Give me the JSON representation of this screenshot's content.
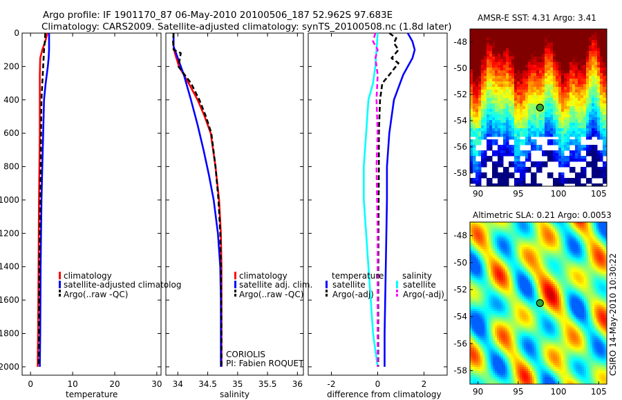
{
  "title": {
    "line1": "Argo profile: IF 1901170_87 06-May-2010 20100506_187 52.962S 97.683E",
    "line2": "Climatology: CARS2009. Satellite-adjusted climatology: synTS_20100508.nc (1.8d later)"
  },
  "side_label": "CSIRO 14-May-2010 10:30:22",
  "colors": {
    "red": "#ff0000",
    "blue": "#0000ff",
    "black": "#000000",
    "cyan": "#00ffff",
    "magenta": "#ff00ff"
  },
  "chart_data": [
    {
      "type": "line",
      "name": "temperature-panel",
      "xlabel": "temperature",
      "ylabel": "",
      "xlim": [
        -2,
        31
      ],
      "ylim": [
        2050,
        0
      ],
      "xticks": [
        "0",
        "10",
        "20",
        "30"
      ],
      "yticks": [
        "0",
        "200",
        "400",
        "600",
        "800",
        "1000",
        "1200",
        "1400",
        "1600",
        "1800",
        "2000"
      ],
      "legend": [
        "climatology",
        "satellite-adjusted climatolog",
        "Argo(..raw -QC)"
      ],
      "series": [
        {
          "name": "climatology",
          "color": "red",
          "style": "solid",
          "x": [
            4.0,
            3.5,
            2.8,
            2.3,
            2.2,
            2.2,
            2.2,
            2.1,
            2.0,
            1.9,
            1.8,
            1.7
          ],
          "y": [
            0,
            50,
            100,
            150,
            250,
            400,
            600,
            800,
            1000,
            1400,
            1800,
            2000
          ]
        },
        {
          "name": "satellite-adjusted climatology",
          "color": "blue",
          "style": "solid",
          "x": [
            4.4,
            4.4,
            4.3,
            4.1,
            3.6,
            3.2,
            3.0,
            2.8,
            2.6,
            2.4,
            2.3,
            2.2
          ],
          "y": [
            0,
            100,
            150,
            200,
            300,
            400,
            600,
            800,
            1000,
            1400,
            1800,
            2000
          ]
        },
        {
          "name": "Argo(..raw -QC)",
          "color": "black",
          "style": "dashed",
          "x": [
            3.5,
            3.4,
            3.2,
            3.1,
            2.9,
            2.6,
            2.5,
            2.4,
            2.3,
            2.1,
            2.0,
            1.9
          ],
          "y": [
            0,
            50,
            100,
            150,
            250,
            400,
            600,
            800,
            1000,
            1400,
            1800,
            2000
          ]
        }
      ]
    },
    {
      "type": "line",
      "name": "salinity-panel",
      "xlabel": "salinity",
      "xlim": [
        33.8,
        36.1
      ],
      "ylim": [
        2050,
        0
      ],
      "xticks": [
        "34",
        "34.5",
        "35",
        "35.5",
        "36"
      ],
      "legend": [
        "climatology",
        "satellite adj. clim.",
        "Argo(..raw -QC)"
      ],
      "annotation": [
        "CORIOLIS",
        "PI: Fabien ROQUET"
      ],
      "series": [
        {
          "name": "climatology",
          "color": "red",
          "style": "solid",
          "x": [
            33.93,
            33.93,
            33.95,
            34.02,
            34.18,
            34.33,
            34.45,
            34.55,
            34.63,
            34.69,
            34.72,
            34.73,
            34.73,
            34.73
          ],
          "y": [
            0,
            80,
            120,
            200,
            300,
            400,
            500,
            600,
            800,
            1000,
            1200,
            1400,
            1800,
            2000
          ]
        },
        {
          "name": "satellite adj. clim.",
          "color": "blue",
          "style": "solid",
          "x": [
            33.93,
            33.93,
            33.98,
            34.1,
            34.22,
            34.33,
            34.43,
            34.52,
            34.6,
            34.67,
            34.71,
            34.72,
            34.72,
            34.72
          ],
          "y": [
            0,
            80,
            130,
            250,
            400,
            550,
            700,
            850,
            1000,
            1200,
            1400,
            1600,
            1800,
            2000
          ]
        },
        {
          "name": "Argo(..raw -QC)",
          "color": "black",
          "style": "dashed",
          "x": [
            33.93,
            33.92,
            33.93,
            34.05,
            34.01,
            34.22,
            34.36,
            34.47,
            34.56,
            34.63,
            34.68,
            34.71,
            34.72,
            34.73,
            34.73
          ],
          "y": [
            0,
            50,
            100,
            120,
            200,
            300,
            400,
            500,
            600,
            800,
            1000,
            1200,
            1400,
            1800,
            2000
          ]
        }
      ]
    },
    {
      "type": "line",
      "name": "difference-panel",
      "xlabel": "difference from climatology",
      "xlim": [
        -3.0,
        3.0
      ],
      "ylim": [
        2050,
        0
      ],
      "xticks": [
        "-2",
        "0",
        "2"
      ],
      "legend_groups": [
        {
          "title": "temperature",
          "entries": [
            "satellite",
            "Argo(-adj)"
          ]
        },
        {
          "title": "salinity",
          "entries": [
            "satellite",
            "Argo(-adj)"
          ]
        }
      ],
      "series": [
        {
          "name": "temperature satellite",
          "color": "blue",
          "style": "solid",
          "x": [
            1.3,
            1.5,
            1.6,
            1.5,
            1.1,
            0.7,
            0.5,
            0.4,
            0.4,
            0.35,
            0.3,
            0.3
          ],
          "y": [
            0,
            50,
            100,
            150,
            250,
            400,
            600,
            800,
            1000,
            1400,
            1800,
            2000
          ]
        },
        {
          "name": "temperature Argo(-adj)",
          "color": "black",
          "style": "dashed",
          "x": [
            0.5,
            0.8,
            0.7,
            0.9,
            0.6,
            0.9,
            0.5,
            0.2,
            0.1,
            0.05,
            0.05,
            0.03,
            0.02,
            0.02
          ],
          "y": [
            0,
            30,
            60,
            100,
            150,
            180,
            250,
            300,
            400,
            600,
            800,
            1200,
            1600,
            2000
          ]
        },
        {
          "name": "salinity satellite",
          "color": "cyan",
          "style": "solid",
          "x": [
            0.0,
            -0.05,
            -0.1,
            -0.2,
            -0.4,
            -0.5,
            -0.6,
            -0.6,
            -0.5,
            -0.4,
            -0.3,
            -0.2,
            -0.1,
            0.0
          ],
          "y": [
            0,
            100,
            200,
            300,
            400,
            600,
            800,
            1000,
            1200,
            1400,
            1600,
            1800,
            1900,
            2000
          ]
        },
        {
          "name": "salinity Argo(-adj)",
          "color": "magenta",
          "style": "dashed",
          "x": [
            -0.1,
            -0.2,
            0.0,
            -0.1,
            0.0,
            -0.05,
            0.0,
            -0.05,
            0.0,
            0.0
          ],
          "y": [
            0,
            50,
            100,
            150,
            250,
            400,
            600,
            800,
            1200,
            2000
          ]
        }
      ]
    },
    {
      "type": "heatmap",
      "name": "amsr-sst-map",
      "title": "AMSR-E SST: 4.31  Argo: 3.41",
      "xlim": [
        89,
        106
      ],
      "ylim": [
        -59,
        -47
      ],
      "xticks": [
        "90",
        "95",
        "100",
        "105"
      ],
      "yticks": [
        "-48",
        "-50",
        "-52",
        "-54",
        "-56",
        "-58"
      ],
      "marker": {
        "lon": 97.7,
        "lat": -53.0
      }
    },
    {
      "type": "heatmap",
      "name": "altimetric-sla-map",
      "title": "Altimetric SLA: 0.21  Argo: 0.0053",
      "xlim": [
        89,
        106
      ],
      "ylim": [
        -59,
        -47
      ],
      "xticks": [
        "90",
        "95",
        "100",
        "105"
      ],
      "yticks": [
        "-48",
        "-50",
        "-52",
        "-54",
        "-56",
        "-58"
      ],
      "marker": {
        "lon": 97.7,
        "lat": -53.0
      }
    }
  ]
}
